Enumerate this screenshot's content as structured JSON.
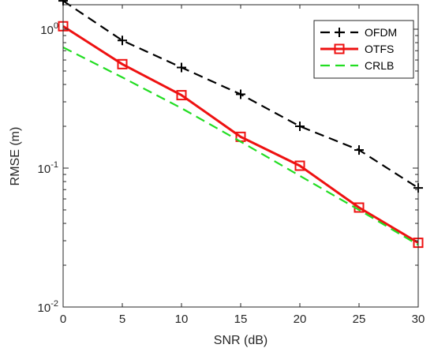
{
  "chart_data": {
    "type": "line",
    "title": "",
    "xlabel": "SNR (dB)",
    "ylabel": "RMSE (m)",
    "x": [
      0,
      5,
      10,
      15,
      20,
      25,
      30
    ],
    "xlim": [
      0,
      30
    ],
    "ylim": [
      0.01,
      1.5
    ],
    "yscale": "log",
    "grid": false,
    "legend_position": "top-right",
    "x_ticks": [
      "0",
      "5",
      "10",
      "15",
      "20",
      "25",
      "30"
    ],
    "y_ticks": [
      {
        "value": 0.01,
        "base": "10",
        "exp": "-2"
      },
      {
        "value": 0.1,
        "base": "10",
        "exp": "-1"
      },
      {
        "value": 1,
        "base": "10",
        "exp": "0"
      }
    ],
    "series": [
      {
        "name": "OFDM",
        "color": "#000000",
        "dash": "dashed",
        "marker": "plus",
        "values": [
          1.6,
          0.83,
          0.53,
          0.34,
          0.2,
          0.135,
          0.072
        ]
      },
      {
        "name": "OTFS",
        "color": "#ee1111",
        "dash": "solid",
        "marker": "square",
        "values": [
          1.05,
          0.56,
          0.335,
          0.168,
          0.104,
          0.052,
          0.029
        ]
      },
      {
        "name": "CRLB",
        "color": "#22dd22",
        "dash": "dashed",
        "marker": "none",
        "values": [
          0.74,
          0.45,
          0.27,
          0.155,
          0.088,
          0.05,
          0.028
        ]
      }
    ]
  }
}
